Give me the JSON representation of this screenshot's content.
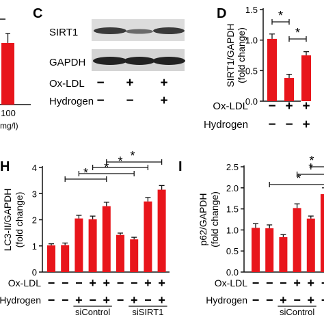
{
  "colors": {
    "bar": "#e8151b",
    "axis": "#111111",
    "blot_bg": "#d9d9d9",
    "band": "#2a2a2a"
  },
  "panel_left": {
    "bar_value_fraction": 0.72,
    "tick_label": "100",
    "unit_fragment": "mg/l)"
  },
  "panel_c": {
    "letter": "C",
    "rows": [
      "SIRT1",
      "GAPDH"
    ],
    "treatments": [
      {
        "name": "Ox-LDL",
        "signs": [
          "−",
          "+",
          "+"
        ]
      },
      {
        "name": "Hydrogen",
        "signs": [
          "−",
          "−",
          "+"
        ]
      }
    ]
  },
  "chart_data": [
    {
      "panel": "D",
      "type": "bar",
      "ylabel_lines": [
        "SIRT1/GAPDH",
        "(fold change)"
      ],
      "ylim": [
        0,
        1.5
      ],
      "yticks": [
        "0.0",
        "0.5",
        "1.0",
        "1.5"
      ],
      "values": [
        1.02,
        0.38,
        0.75
      ],
      "errors": [
        0.08,
        0.06,
        0.06
      ],
      "annotations": [
        "*",
        "*"
      ],
      "treatments": [
        {
          "name": "Ox-LDL",
          "signs": [
            "−",
            "+",
            "+"
          ]
        },
        {
          "name": "Hydrogen",
          "signs": [
            "−",
            "−",
            "+"
          ]
        }
      ]
    },
    {
      "panel": "H",
      "type": "bar",
      "ylabel_lines": [
        "LC3-II/GAPDH",
        "(fold change)"
      ],
      "ylim": [
        0,
        4
      ],
      "yticks": [
        "0",
        "1",
        "2",
        "3",
        "4"
      ],
      "values": [
        1.02,
        1.03,
        2.05,
        2.02,
        2.52,
        1.42,
        1.25,
        2.7,
        3.15
      ],
      "errors": [
        0.06,
        0.08,
        0.12,
        0.12,
        0.15,
        0.07,
        0.08,
        0.15,
        0.16
      ],
      "annotations": [
        "*",
        "*",
        "*",
        "*"
      ],
      "treatments": [
        {
          "name": "Ox-LDL",
          "signs": [
            "−",
            "−",
            "−",
            "+",
            "+",
            "−",
            "−",
            "+",
            "+"
          ]
        },
        {
          "name": "Hydrogen",
          "signs": [
            "−",
            "−",
            "+",
            "−",
            "+",
            "−",
            "+",
            "−",
            "+"
          ]
        }
      ],
      "groups": [
        "siControl",
        "siSIRT1"
      ]
    },
    {
      "panel": "I",
      "type": "bar",
      "ylabel_lines": [
        "p62/GAPDH",
        "(fold change)"
      ],
      "ylim": [
        0,
        2.5
      ],
      "yticks": [
        "0.0",
        "0.5",
        "1.0",
        "1.5",
        "2.0",
        "2.5"
      ],
      "values": [
        1.05,
        1.04,
        0.83,
        1.52,
        1.27,
        1.85
      ],
      "errors": [
        0.1,
        0.08,
        0.06,
        0.1,
        0.06,
        0.15
      ],
      "annotations": [
        "*",
        "*",
        "*"
      ],
      "treatments": [
        {
          "name": "Ox-LDL",
          "signs": [
            "−",
            "−",
            "−",
            "+",
            "+",
            "−"
          ]
        },
        {
          "name": "Hydrogen",
          "signs": [
            "−",
            "−",
            "+",
            "−",
            "+",
            "−"
          ]
        }
      ],
      "groups": [
        "siControl"
      ]
    }
  ]
}
